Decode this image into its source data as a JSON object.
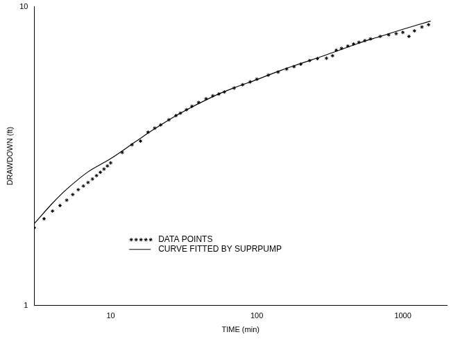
{
  "chart_data": {
    "type": "scatter",
    "x_label": "TIME (min)",
    "y_label": "DRAWDOWN (ft)",
    "log": true,
    "grid": false,
    "legend": "lower center",
    "xlim": [
      3,
      2000
    ],
    "xticks": [
      10,
      100,
      1000
    ],
    "ylim": [
      1,
      10
    ],
    "yticks": [
      1,
      10
    ],
    "series": [
      {
        "name": "DATA POINTS",
        "color": "#000000",
        "marker": "star",
        "line_style": "none",
        "x": [
          3,
          3.5,
          4,
          4.5,
          5,
          5.5,
          6,
          6.5,
          7,
          7.5,
          8,
          8.5,
          9,
          9.5,
          10,
          12,
          14,
          16,
          18,
          20,
          22,
          25,
          28,
          30,
          33,
          36,
          40,
          45,
          50,
          55,
          60,
          70,
          80,
          90,
          100,
          120,
          140,
          160,
          180,
          200,
          230,
          260,
          300,
          330,
          350,
          380,
          420,
          460,
          500,
          550,
          600,
          700,
          800,
          900,
          1000,
          1100,
          1200,
          1350,
          1500
        ],
        "values": [
          1.82,
          1.95,
          2.07,
          2.16,
          2.25,
          2.35,
          2.44,
          2.51,
          2.58,
          2.65,
          2.72,
          2.79,
          2.86,
          2.93,
          3.0,
          3.25,
          3.45,
          3.55,
          3.8,
          3.92,
          4.02,
          4.18,
          4.32,
          4.4,
          4.52,
          4.64,
          4.78,
          4.92,
          5.03,
          5.1,
          5.18,
          5.34,
          5.48,
          5.6,
          5.72,
          5.9,
          6.04,
          6.18,
          6.3,
          6.42,
          6.6,
          6.7,
          6.72,
          6.85,
          7.15,
          7.25,
          7.38,
          7.5,
          7.6,
          7.7,
          7.8,
          7.95,
          8.05,
          8.12,
          8.2,
          7.95,
          8.3,
          8.55,
          8.7
        ]
      },
      {
        "name": "CURVE FITTED BY SUPRPUMP",
        "color": "#000000",
        "marker": "none",
        "line_style": "solid",
        "x": [
          3,
          4,
          5,
          7,
          10,
          15,
          20,
          30,
          50,
          70,
          100,
          150,
          200,
          300,
          500,
          700,
          1000,
          1550
        ],
        "values": [
          1.88,
          2.2,
          2.45,
          2.8,
          3.1,
          3.55,
          3.9,
          4.4,
          5.0,
          5.35,
          5.7,
          6.15,
          6.45,
          6.9,
          7.55,
          7.95,
          8.4,
          8.95
        ]
      }
    ]
  }
}
